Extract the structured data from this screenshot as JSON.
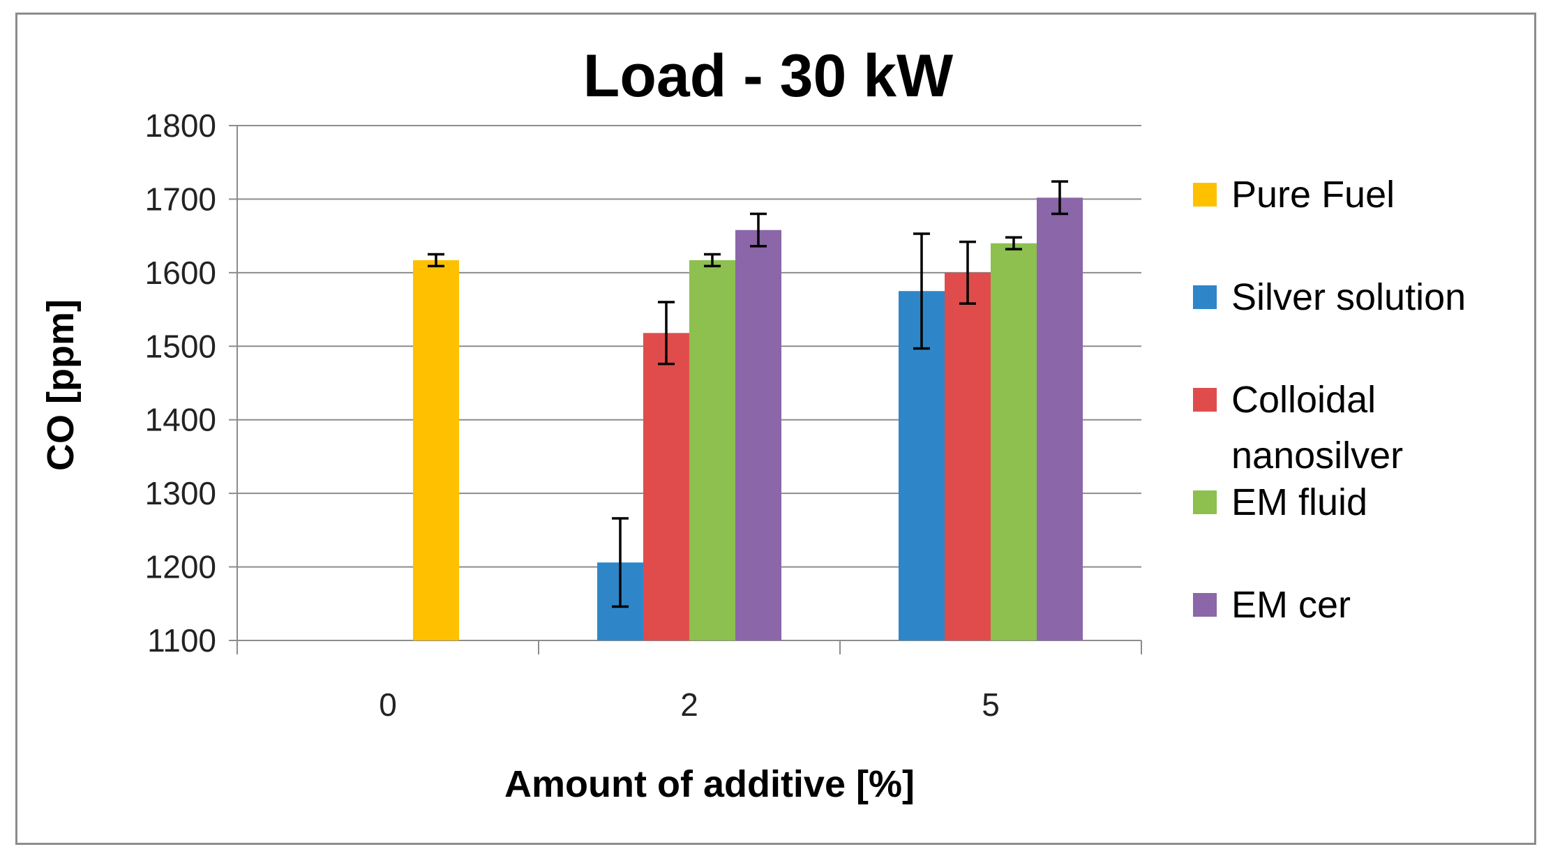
{
  "chart_data": {
    "type": "bar",
    "title": "Load - 30 kW",
    "xlabel": "Amount of additive [%]",
    "ylabel": "CO  [ppm]",
    "ylim": [
      1100,
      1800
    ],
    "yticks": [
      1100,
      1200,
      1300,
      1400,
      1500,
      1600,
      1700,
      1800
    ],
    "grid": true,
    "legend_position": "right",
    "categories": [
      "0",
      "2",
      "5"
    ],
    "series": [
      {
        "name": "Pure Fuel",
        "color": "#FFC000",
        "values": [
          1617,
          null,
          null
        ],
        "errors": [
          8,
          null,
          null
        ]
      },
      {
        "name": "Silver solution",
        "color": "#2E86C8",
        "values": [
          null,
          1206,
          1575
        ],
        "errors": [
          null,
          60,
          78
        ]
      },
      {
        "name": "Colloidal nanosilver",
        "legend_lines": [
          "Colloidal",
          "nanosilver"
        ],
        "color": "#E04C4C",
        "values": [
          null,
          1518,
          1600
        ],
        "errors": [
          null,
          42,
          42
        ]
      },
      {
        "name": "EM fluid",
        "color": "#8DC04F",
        "values": [
          null,
          1617,
          1640
        ],
        "errors": [
          null,
          8,
          8
        ]
      },
      {
        "name": "EM cer",
        "color": "#8B66A8",
        "values": [
          null,
          1658,
          1702
        ],
        "errors": [
          null,
          22,
          22
        ]
      }
    ]
  }
}
